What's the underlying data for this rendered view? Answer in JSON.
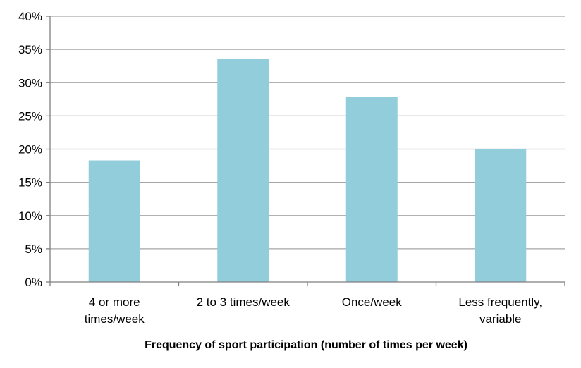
{
  "chart_data": {
    "type": "bar",
    "title": "",
    "xlabel": "Frequency of sport participation  (number of times per week)",
    "ylabel": "",
    "categories": [
      [
        "4 or more",
        "times/week"
      ],
      [
        "2 to 3 times/week"
      ],
      [
        "Once/week"
      ],
      [
        "Less frequently,",
        "variable"
      ]
    ],
    "values": [
      18.3,
      33.6,
      27.9,
      20.0
    ],
    "ylim": [
      0,
      40
    ],
    "yticks": [
      0,
      5,
      10,
      15,
      20,
      25,
      30,
      35,
      40
    ],
    "ytick_labels": [
      "0%",
      "5%",
      "10%",
      "15%",
      "20%",
      "25%",
      "30%",
      "35%",
      "40%"
    ],
    "grid": true,
    "bar_color": "#92CDDC",
    "grid_color": "#A6A6A6",
    "axis_color": "#7F7F7F"
  }
}
